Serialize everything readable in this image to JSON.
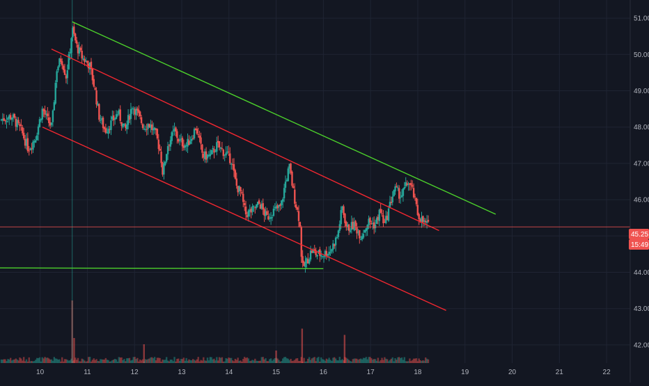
{
  "chart_data": {
    "type": "candlestick",
    "colors": {
      "background": "#131722",
      "grid": "#1f2433",
      "axis_text": "#b2b5be",
      "up": "#26a69a",
      "down": "#ef5350",
      "channel_lines": "#f22730",
      "resistance_line": "#4cd12b",
      "price_line": "#ef5350",
      "price_label_bg": "#ef5350",
      "price_label_text": "#ffffff"
    },
    "x_axis": {
      "ticks": [
        10,
        11,
        12,
        13,
        14,
        15,
        16,
        17,
        18,
        19,
        20,
        21,
        22
      ],
      "range": [
        9.15,
        22.5
      ]
    },
    "y_axis": {
      "ticks": [
        "42.00",
        "43.00",
        "44.00",
        "45.00",
        "46.00",
        "47.00",
        "48.00",
        "49.00",
        "50.00",
        "51.00"
      ],
      "range": [
        41.5,
        51.5
      ]
    },
    "current_price_label": "45.25",
    "countdown_label": "15:49",
    "current_price": 45.25,
    "price_path": [
      [
        9.15,
        48.2
      ],
      [
        9.4,
        48.3
      ],
      [
        9.6,
        47.9
      ],
      [
        9.75,
        47.4
      ],
      [
        9.9,
        47.7
      ],
      [
        10.05,
        48.5
      ],
      [
        10.15,
        48.2
      ],
      [
        10.25,
        48.0
      ],
      [
        10.35,
        49.6
      ],
      [
        10.45,
        49.9
      ],
      [
        10.55,
        49.4
      ],
      [
        10.62,
        50.0
      ],
      [
        10.68,
        50.7
      ],
      [
        10.78,
        50.2
      ],
      [
        10.9,
        49.9
      ],
      [
        11.05,
        49.7
      ],
      [
        11.15,
        49.1
      ],
      [
        11.25,
        48.3
      ],
      [
        11.38,
        47.9
      ],
      [
        11.5,
        48.1
      ],
      [
        11.65,
        48.4
      ],
      [
        11.8,
        47.9
      ],
      [
        11.95,
        48.6
      ],
      [
        12.05,
        48.4
      ],
      [
        12.2,
        48.0
      ],
      [
        12.3,
        48.1
      ],
      [
        12.45,
        47.8
      ],
      [
        12.55,
        47.3
      ],
      [
        12.6,
        46.7
      ],
      [
        12.7,
        47.5
      ],
      [
        12.85,
        47.9
      ],
      [
        12.95,
        47.6
      ],
      [
        13.1,
        47.5
      ],
      [
        13.2,
        47.7
      ],
      [
        13.3,
        48.0
      ],
      [
        13.45,
        47.2
      ],
      [
        13.6,
        47.2
      ],
      [
        13.75,
        47.5
      ],
      [
        13.9,
        47.3
      ],
      [
        14.05,
        47.1
      ],
      [
        14.15,
        46.4
      ],
      [
        14.25,
        46.2
      ],
      [
        14.35,
        45.6
      ],
      [
        14.5,
        45.7
      ],
      [
        14.65,
        45.9
      ],
      [
        14.8,
        45.5
      ],
      [
        14.95,
        45.7
      ],
      [
        15.1,
        45.8
      ],
      [
        15.2,
        46.5
      ],
      [
        15.28,
        46.9
      ],
      [
        15.38,
        46.1
      ],
      [
        15.5,
        45.4
      ],
      [
        15.55,
        44.1
      ],
      [
        15.65,
        44.3
      ],
      [
        15.75,
        44.6
      ],
      [
        15.85,
        44.5
      ],
      [
        16.0,
        44.5
      ],
      [
        16.15,
        44.6
      ],
      [
        16.3,
        45.0
      ],
      [
        16.4,
        45.8
      ],
      [
        16.5,
        45.2
      ],
      [
        16.65,
        45.3
      ],
      [
        16.8,
        45.0
      ],
      [
        16.95,
        45.4
      ],
      [
        17.1,
        45.3
      ],
      [
        17.2,
        45.7
      ],
      [
        17.3,
        45.3
      ],
      [
        17.4,
        45.8
      ],
      [
        17.5,
        46.3
      ],
      [
        17.65,
        46.1
      ],
      [
        17.8,
        46.5
      ],
      [
        17.9,
        46.2
      ],
      [
        18.0,
        45.6
      ],
      [
        18.1,
        45.4
      ],
      [
        18.2,
        45.3
      ],
      [
        18.25,
        45.25
      ]
    ],
    "lines": [
      {
        "name": "channel-upper",
        "color_key": "channel_lines",
        "from": [
          10.24,
          50.15
        ],
        "to": [
          18.45,
          45.15
        ]
      },
      {
        "name": "channel-lower",
        "color_key": "channel_lines",
        "from": [
          10.05,
          48.0
        ],
        "to": [
          18.6,
          42.95
        ]
      },
      {
        "name": "resistance-upper",
        "color_key": "resistance_line",
        "from": [
          10.68,
          50.9
        ],
        "to": [
          19.65,
          45.6
        ]
      },
      {
        "name": "support-horizontal",
        "color_key": "resistance_line",
        "from": [
          9.15,
          44.12
        ],
        "to": [
          16.0,
          44.1
        ]
      }
    ],
    "volume_spikes": [
      {
        "x": 10.68,
        "v": 1.0
      },
      {
        "x": 15.55,
        "v": 0.55
      },
      {
        "x": 16.45,
        "v": 0.45
      },
      {
        "x": 10.72,
        "v": 0.4
      },
      {
        "x": 12.2,
        "v": 0.3
      },
      {
        "x": 15.0,
        "v": 0.2
      }
    ],
    "grid": true,
    "legend": "none"
  }
}
